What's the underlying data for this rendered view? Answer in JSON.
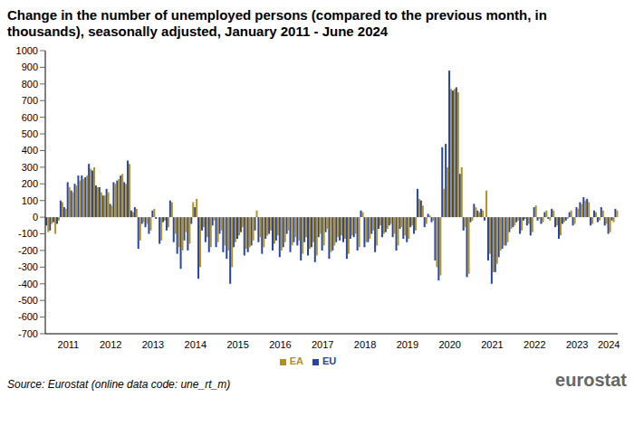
{
  "chart_data": {
    "type": "bar",
    "title": "Change in the number of unemployed persons (compared to the previous month, in thousands), seasonally adjusted, January 2011 - June 2024",
    "source": "Source: Eurostat (online data code: une_rt_m)",
    "logo": "eurostat",
    "categories": [
      null,
      null,
      null,
      null,
      null,
      null,
      "2011",
      null,
      null,
      null,
      null,
      null,
      null,
      null,
      null,
      null,
      null,
      null,
      "2012",
      null,
      null,
      null,
      null,
      null,
      null,
      null,
      null,
      null,
      null,
      null,
      "2013",
      null,
      null,
      null,
      null,
      null,
      null,
      null,
      null,
      null,
      null,
      null,
      "2014",
      null,
      null,
      null,
      null,
      null,
      null,
      null,
      null,
      null,
      null,
      null,
      "2015",
      null,
      null,
      null,
      null,
      null,
      null,
      null,
      null,
      null,
      null,
      null,
      "2016",
      null,
      null,
      null,
      null,
      null,
      null,
      null,
      null,
      null,
      null,
      null,
      "2017",
      null,
      null,
      null,
      null,
      null,
      null,
      null,
      null,
      null,
      null,
      null,
      "2018",
      null,
      null,
      null,
      null,
      null,
      null,
      null,
      null,
      null,
      null,
      null,
      "2019",
      null,
      null,
      null,
      null,
      null,
      null,
      null,
      null,
      null,
      null,
      null,
      "2020",
      null,
      null,
      null,
      null,
      null,
      null,
      null,
      null,
      null,
      null,
      null,
      "2021",
      null,
      null,
      null,
      null,
      null,
      null,
      null,
      null,
      null,
      null,
      null,
      "2022",
      null,
      null,
      null,
      null,
      null,
      null,
      null,
      null,
      null,
      null,
      null,
      "2023",
      null,
      null,
      null,
      null,
      null,
      null,
      null,
      null,
      "2024",
      null,
      null
    ],
    "series": [
      {
        "name": "EU",
        "color": "#2644a7",
        "values": [
          -50,
          -80,
          -30,
          -40,
          100,
          60,
          210,
          160,
          200,
          250,
          250,
          240,
          320,
          280,
          190,
          180,
          130,
          170,
          80,
          210,
          220,
          250,
          210,
          340,
          40,
          60,
          -190,
          -40,
          -60,
          -100,
          40,
          -10,
          -160,
          -30,
          -80,
          100,
          -150,
          -220,
          -310,
          -140,
          -200,
          -40,
          60,
          -370,
          -80,
          -150,
          -210,
          -50,
          -180,
          -100,
          -210,
          -250,
          -400,
          -180,
          -130,
          -90,
          -230,
          -210,
          -170,
          -80,
          -150,
          -220,
          -130,
          -100,
          -200,
          -140,
          -240,
          -180,
          -100,
          -210,
          -150,
          -170,
          -260,
          -150,
          -230,
          -180,
          -270,
          -120,
          -200,
          -90,
          -250,
          -200,
          -150,
          -140,
          -150,
          -250,
          -130,
          -120,
          -200,
          40,
          -180,
          -150,
          -100,
          -210,
          -70,
          -120,
          -90,
          -50,
          -120,
          -200,
          -70,
          -130,
          -150,
          -60,
          -100,
          170,
          100,
          -60,
          20,
          -30,
          -260,
          -380,
          420,
          440,
          880,
          760,
          780,
          260,
          -80,
          -360,
          -30,
          80,
          40,
          50,
          -20,
          -260,
          -400,
          -330,
          -240,
          -190,
          -170,
          -90,
          -60,
          -30,
          -100,
          -20,
          -50,
          -110,
          60,
          -20,
          -40,
          30,
          -10,
          50,
          -60,
          -130,
          -40,
          -20,
          30,
          -50,
          60,
          90,
          120,
          110,
          -50,
          40,
          -30,
          60,
          -50,
          -100,
          -20,
          50
        ]
      },
      {
        "name": "EA",
        "color": "#b09120",
        "values": [
          -90,
          -40,
          -100,
          -20,
          90,
          50,
          180,
          150,
          190,
          220,
          230,
          250,
          290,
          300,
          180,
          150,
          130,
          150,
          70,
          200,
          230,
          260,
          200,
          320,
          30,
          50,
          -140,
          -30,
          -40,
          -80,
          50,
          0,
          -140,
          -20,
          -60,
          90,
          -100,
          -180,
          -200,
          -90,
          -160,
          90,
          110,
          -300,
          -60,
          -120,
          -180,
          -20,
          -150,
          -80,
          -170,
          -200,
          -300,
          -150,
          -110,
          -60,
          -190,
          -180,
          -140,
          40,
          -120,
          -180,
          -110,
          -80,
          -160,
          -110,
          -200,
          -150,
          -80,
          -170,
          -120,
          -140,
          -220,
          -120,
          -190,
          -150,
          -230,
          -100,
          -170,
          -70,
          -210,
          -170,
          -120,
          -110,
          -130,
          -220,
          -110,
          -100,
          -180,
          30,
          -150,
          -130,
          -80,
          -170,
          -50,
          -100,
          -70,
          -40,
          -100,
          -170,
          -60,
          -110,
          -130,
          -50,
          -80,
          110,
          70,
          -40,
          10,
          -20,
          -300,
          -350,
          170,
          300,
          770,
          770,
          750,
          300,
          -60,
          -340,
          -20,
          60,
          30,
          40,
          160,
          -220,
          -330,
          -280,
          -200,
          -170,
          -150,
          -70,
          -50,
          -20,
          -80,
          -10,
          -40,
          -90,
          70,
          -10,
          -30,
          40,
          -20,
          40,
          -50,
          -110,
          -30,
          -10,
          40,
          -40,
          50,
          80,
          100,
          90,
          -40,
          30,
          -20,
          40,
          -40,
          -90,
          -30,
          40
        ]
      }
    ],
    "ylim": [
      -700,
      1000
    ],
    "yticks": [
      -700,
      -600,
      -500,
      -400,
      -300,
      -200,
      -100,
      0,
      100,
      200,
      300,
      400,
      500,
      600,
      700,
      800,
      900,
      1000
    ],
    "grid": false,
    "legend": "bottom"
  }
}
